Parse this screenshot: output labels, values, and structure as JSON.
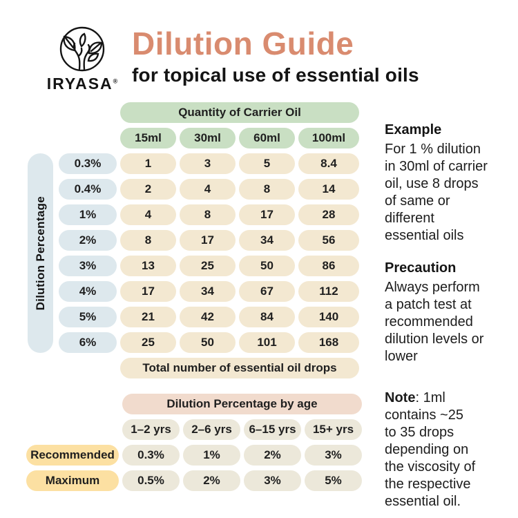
{
  "brand": {
    "name": "IRYASA",
    "registered_mark": "®",
    "logo_icon": "tree-in-circle-logo"
  },
  "header": {
    "title": "Dilution Guide",
    "subtitle": "for topical use of essential oils"
  },
  "colors": {
    "title_accent": "#D98B6F",
    "carrier_header_green": "#C9DFC3",
    "drops_cell_cream": "#F3E8D1",
    "dilution_label_blue": "#DDE8ED",
    "age_header_pink": "#F1DBCD",
    "age_cell_beige": "#ECE8DA",
    "row_label_yellow": "#FCE0A2"
  },
  "chart_data": [
    {
      "type": "table",
      "title": "Quantity of Carrier Oil",
      "row_axis_label": "Dilution Percentage",
      "columns": [
        "15ml",
        "30ml",
        "60ml",
        "100ml"
      ],
      "rows": [
        {
          "label": "0.3%",
          "values": [
            "1",
            "3",
            "5",
            "8.4"
          ]
        },
        {
          "label": "0.4%",
          "values": [
            "2",
            "4",
            "8",
            "14"
          ]
        },
        {
          "label": "1%",
          "values": [
            "4",
            "8",
            "17",
            "28"
          ]
        },
        {
          "label": "2%",
          "values": [
            "8",
            "17",
            "34",
            "56"
          ]
        },
        {
          "label": "3%",
          "values": [
            "13",
            "25",
            "50",
            "86"
          ]
        },
        {
          "label": "4%",
          "values": [
            "17",
            "34",
            "67",
            "112"
          ]
        },
        {
          "label": "5%",
          "values": [
            "21",
            "42",
            "84",
            "140"
          ]
        },
        {
          "label": "6%",
          "values": [
            "25",
            "50",
            "101",
            "168"
          ]
        }
      ],
      "footer": "Total number of essential oil drops"
    },
    {
      "type": "table",
      "title": "Dilution Percentage by age",
      "columns": [
        "1–2 yrs",
        "2–6 yrs",
        "6–15 yrs",
        "15+ yrs"
      ],
      "rows": [
        {
          "label": "Recommended",
          "values": [
            "0.3%",
            "1%",
            "2%",
            "3%"
          ]
        },
        {
          "label": "Maximum",
          "values": [
            "0.5%",
            "2%",
            "3%",
            "5%"
          ]
        }
      ]
    }
  ],
  "notes": {
    "example": {
      "heading": "Example",
      "body": "For 1 % dilution\nin 30ml of carrier\noil,  use 8 drops\nof same or\ndifferent\nessential oils"
    },
    "precaution": {
      "heading": "Precaution",
      "body": "Always perform\na patch test at\nrecommended\ndilution levels or\nlower"
    },
    "note": {
      "heading": "Note",
      "body": ": 1ml\ncontains ~25\nto 35 drops\ndepending on\nthe viscosity of\nthe respective\nessential oil."
    }
  }
}
